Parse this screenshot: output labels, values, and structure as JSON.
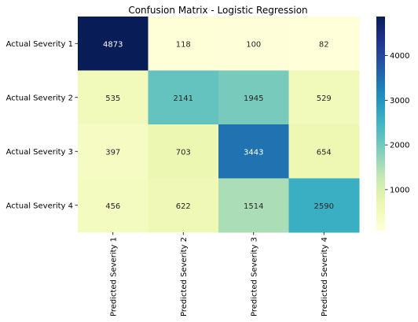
{
  "chart_data": {
    "type": "heatmap",
    "title": "Confusion Matrix - Logistic Regression",
    "xlabel": "",
    "ylabel": "",
    "row_labels": [
      "Actual Severity 1",
      "Actual Severity 2",
      "Actual Severity 3",
      "Actual Severity 4"
    ],
    "col_labels": [
      "Predicted Severity 1",
      "Predicted Severity 2",
      "Predicted Severity 3",
      "Predicted Severity 4"
    ],
    "values": [
      [
        4873,
        118,
        100,
        82
      ],
      [
        535,
        2141,
        1945,
        529
      ],
      [
        397,
        703,
        3443,
        654
      ],
      [
        456,
        622,
        1514,
        2590
      ]
    ],
    "value_range": [
      82,
      4873
    ],
    "colormap": "YlGnBu",
    "colorbar_ticks": [
      1000,
      2000,
      3000,
      4000
    ],
    "annotations": true
  }
}
